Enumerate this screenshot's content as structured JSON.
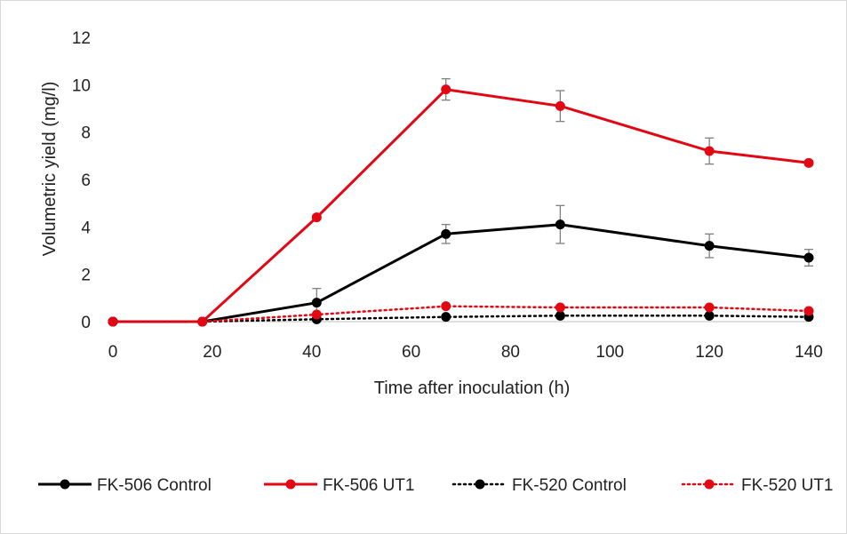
{
  "chart_data": {
    "type": "line",
    "title": "",
    "xlabel": "Time after inoculation (h)",
    "ylabel": "Volumetric yield (mg/l)",
    "xlim": [
      0,
      140
    ],
    "ylim": [
      0,
      12
    ],
    "x_ticks": [
      "0",
      "20",
      "40",
      "60",
      "80",
      "100",
      "120",
      "140"
    ],
    "y_ticks": [
      "0",
      "2",
      "4",
      "6",
      "8",
      "10",
      "12"
    ],
    "grid": false,
    "legend_position": "bottom",
    "series": [
      {
        "name": "FK-506 Control",
        "color": "#000000",
        "dash": "solid",
        "x": [
          0,
          18,
          41,
          67,
          90,
          120,
          140
        ],
        "y": [
          0,
          0,
          0.8,
          3.7,
          4.1,
          3.2,
          2.7
        ],
        "err": [
          0,
          0,
          0.6,
          0.4,
          0.8,
          0.5,
          0.35
        ]
      },
      {
        "name": "FK-506 UT1",
        "color": "#e30613",
        "dash": "solid",
        "x": [
          0,
          18,
          41,
          67,
          90,
          120,
          140
        ],
        "y": [
          0,
          0,
          4.4,
          9.8,
          9.1,
          7.2,
          6.7
        ],
        "err": [
          0,
          0,
          0.1,
          0.45,
          0.65,
          0.55,
          0.1
        ]
      },
      {
        "name": "FK-520 Control",
        "color": "#000000",
        "dash": "dotted",
        "x": [
          0,
          18,
          41,
          67,
          90,
          120,
          140
        ],
        "y": [
          0,
          0,
          0.1,
          0.2,
          0.25,
          0.25,
          0.2
        ],
        "err": [
          0,
          0,
          0,
          0,
          0,
          0,
          0
        ]
      },
      {
        "name": "FK-520 UT1",
        "color": "#e30613",
        "dash": "dotted",
        "x": [
          0,
          18,
          41,
          67,
          90,
          120,
          140
        ],
        "y": [
          0,
          0,
          0.3,
          0.65,
          0.6,
          0.6,
          0.45
        ],
        "err": [
          0,
          0,
          0,
          0,
          0,
          0,
          0
        ]
      }
    ]
  }
}
